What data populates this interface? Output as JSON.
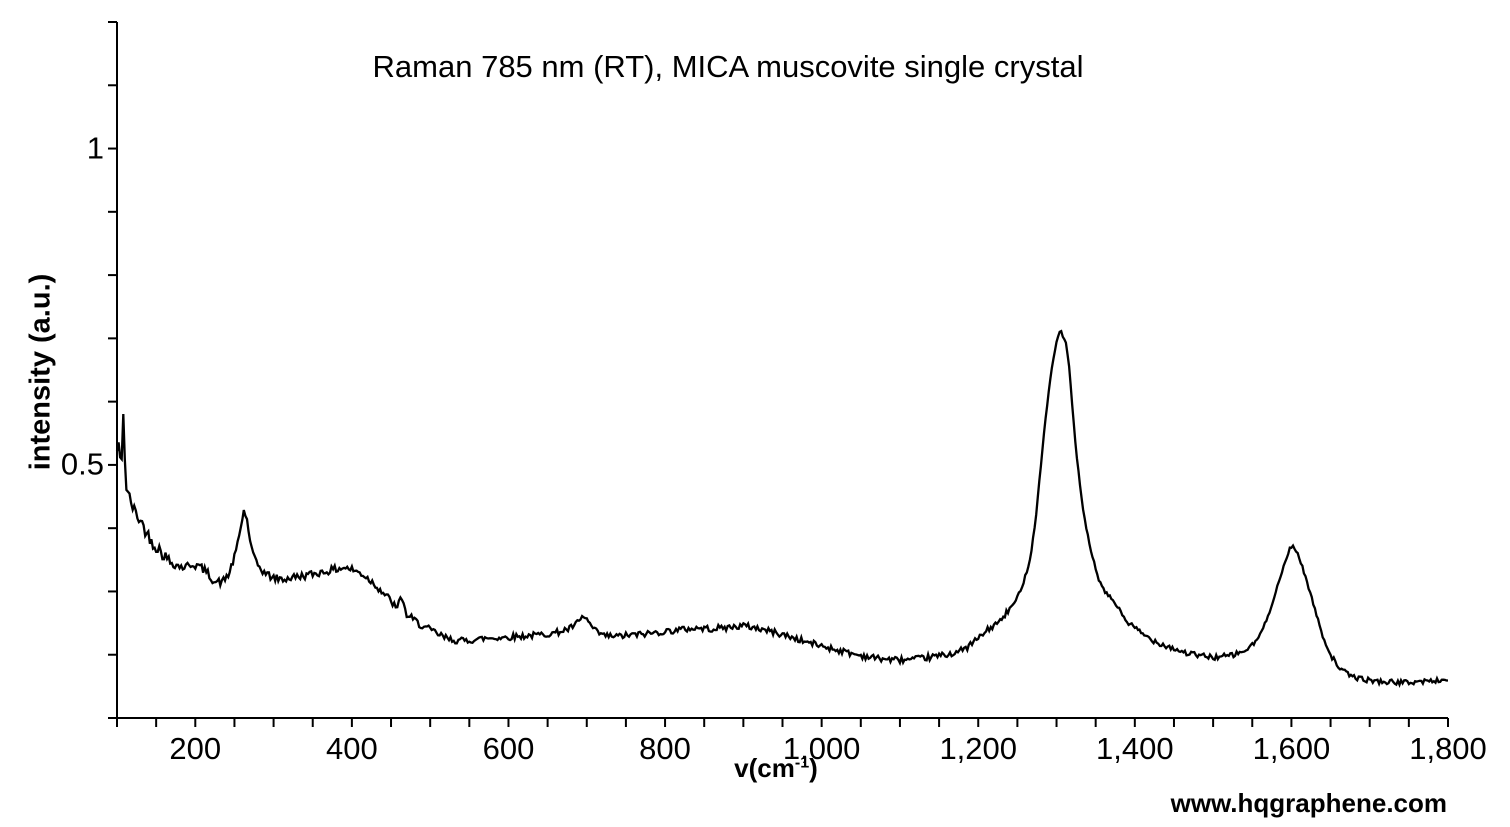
{
  "watermark": "www.hqgraphene.com",
  "chart_data": {
    "type": "line",
    "title": "Raman 785 nm (RT), MICA muscovite single crystal",
    "xlabel": {
      "pre": "v(cm",
      "sup": "-1",
      "post": ")"
    },
    "ylabel": "intensity (a.u.)",
    "grid": false,
    "legend": false,
    "line_color": "#000000",
    "x_axis": {
      "range": [
        100,
        1800
      ],
      "minor_tick_step": 50,
      "labeled_ticks": [
        {
          "value": 200,
          "label": "200"
        },
        {
          "value": 400,
          "label": "400"
        },
        {
          "value": 600,
          "label": "600"
        },
        {
          "value": 800,
          "label": "800"
        },
        {
          "value": 1000,
          "label": "1,000"
        },
        {
          "value": 1200,
          "label": "1,200"
        },
        {
          "value": 1400,
          "label": "1,400"
        },
        {
          "value": 1600,
          "label": "1,600"
        },
        {
          "value": 1800,
          "label": "1,800"
        }
      ]
    },
    "y_axis": {
      "range": [
        0.1,
        1.2
      ],
      "minor_tick_step": 0.1,
      "labeled_ticks": [
        {
          "value": 0.5,
          "label": "0.5"
        },
        {
          "value": 1,
          "label": "1"
        }
      ]
    },
    "series": [
      {
        "points_x": [
          100,
          103,
          105,
          108,
          111,
          114,
          118,
          123,
          131,
          139,
          147,
          155,
          165,
          175,
          185,
          195,
          205,
          215,
          225,
          235,
          244,
          252,
          258,
          262,
          266,
          271,
          278,
          287,
          298,
          312,
          328,
          344,
          360,
          375,
          390,
          402,
          415,
          428,
          440,
          450,
          458,
          463,
          469,
          480,
          492,
          506,
          520,
          535,
          552,
          570,
          590,
          612,
          635,
          658,
          678,
          690,
          696,
          702,
          710,
          722,
          738,
          756,
          775,
          795,
          815,
          838,
          858,
          880,
          900,
          918,
          938,
          958,
          978,
          1000,
          1022,
          1045,
          1068,
          1092,
          1115,
          1138,
          1160,
          1182,
          1202,
          1215,
          1228,
          1240,
          1248,
          1258,
          1266,
          1272,
          1277,
          1282,
          1287,
          1292,
          1297,
          1301,
          1304,
          1306,
          1309,
          1312,
          1315,
          1318,
          1322,
          1326,
          1331,
          1337,
          1344,
          1352,
          1361,
          1371,
          1380,
          1390,
          1400,
          1413,
          1428,
          1445,
          1462,
          1480,
          1500,
          1520,
          1535,
          1548,
          1558,
          1566,
          1573,
          1580,
          1587,
          1593,
          1598,
          1602,
          1606,
          1611,
          1617,
          1624,
          1632,
          1640,
          1648,
          1656,
          1665,
          1675,
          1688,
          1703,
          1720,
          1745,
          1770,
          1800
        ],
        "points_y": [
          0.52,
          0.545,
          0.465,
          0.587,
          0.47,
          0.455,
          0.44,
          0.425,
          0.41,
          0.39,
          0.375,
          0.365,
          0.35,
          0.342,
          0.338,
          0.343,
          0.34,
          0.33,
          0.315,
          0.315,
          0.33,
          0.365,
          0.4,
          0.428,
          0.413,
          0.372,
          0.345,
          0.331,
          0.322,
          0.319,
          0.323,
          0.326,
          0.33,
          0.334,
          0.338,
          0.334,
          0.326,
          0.313,
          0.298,
          0.285,
          0.271,
          0.296,
          0.264,
          0.254,
          0.244,
          0.235,
          0.226,
          0.222,
          0.223,
          0.226,
          0.227,
          0.229,
          0.231,
          0.234,
          0.241,
          0.252,
          0.261,
          0.252,
          0.238,
          0.23,
          0.229,
          0.231,
          0.233,
          0.236,
          0.239,
          0.242,
          0.241,
          0.243,
          0.246,
          0.242,
          0.236,
          0.229,
          0.221,
          0.214,
          0.207,
          0.2,
          0.195,
          0.192,
          0.192,
          0.196,
          0.2,
          0.208,
          0.228,
          0.242,
          0.253,
          0.272,
          0.285,
          0.315,
          0.35,
          0.4,
          0.46,
          0.525,
          0.585,
          0.635,
          0.675,
          0.7,
          0.71,
          0.713,
          0.7,
          0.692,
          0.668,
          0.625,
          0.565,
          0.51,
          0.455,
          0.405,
          0.365,
          0.325,
          0.3,
          0.288,
          0.272,
          0.252,
          0.242,
          0.23,
          0.22,
          0.212,
          0.204,
          0.199,
          0.196,
          0.198,
          0.203,
          0.212,
          0.227,
          0.248,
          0.272,
          0.3,
          0.327,
          0.349,
          0.368,
          0.372,
          0.365,
          0.35,
          0.327,
          0.298,
          0.263,
          0.23,
          0.205,
          0.188,
          0.175,
          0.167,
          0.162,
          0.159,
          0.157,
          0.156,
          0.158,
          0.16
        ]
      }
    ],
    "noise": {
      "seed": 42,
      "sample_step": 2,
      "bands": [
        {
          "from": 100,
          "to": 170,
          "amp": 0.01
        },
        {
          "from": 170,
          "to": 248,
          "amp": 0.0065
        },
        {
          "from": 248,
          "to": 276,
          "amp": 0.003
        },
        {
          "from": 276,
          "to": 525,
          "amp": 0.006
        },
        {
          "from": 525,
          "to": 1240,
          "amp": 0.005
        },
        {
          "from": 1240,
          "to": 1380,
          "amp": 0.0025
        },
        {
          "from": 1380,
          "to": 1555,
          "amp": 0.0045
        },
        {
          "from": 1555,
          "to": 1645,
          "amp": 0.0025
        },
        {
          "from": 1645,
          "to": 1800,
          "amp": 0.004
        }
      ]
    }
  }
}
